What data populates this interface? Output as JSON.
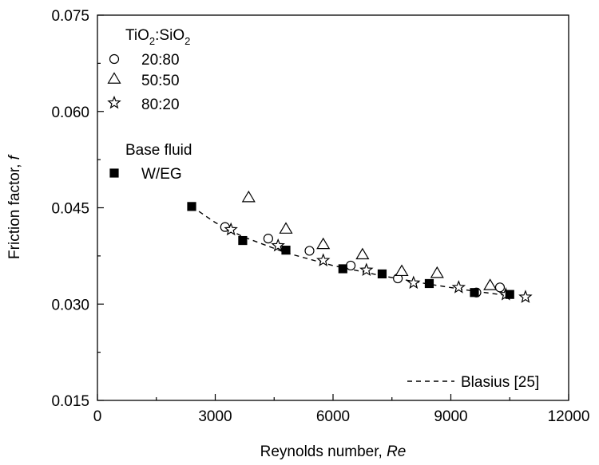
{
  "chart_data": {
    "type": "scatter",
    "title": "",
    "xlabel": "Reynolds number, ",
    "xlabel_italic": "Re",
    "ylabel": "Friction factor, ",
    "ylabel_italic": "f",
    "xlim": [
      0,
      12000
    ],
    "ylim": [
      0.015,
      0.075
    ],
    "xticks": [
      0,
      3000,
      6000,
      9000,
      12000
    ],
    "xtick_labels": [
      "0",
      "3000",
      "6000",
      "9000",
      "12000"
    ],
    "yticks": [
      0.015,
      0.03,
      0.045,
      0.06,
      0.075
    ],
    "ytick_labels": [
      "0.015",
      "0.030",
      "0.045",
      "0.060",
      "0.075"
    ],
    "grid": false,
    "legend": {
      "placement": "top-left",
      "group1_title": {
        "main": "TiO",
        "sub1": "2",
        "sep": ":SiO",
        "sub2": "2"
      },
      "group2_title": "Base fluid"
    },
    "series": [
      {
        "name": "20:80",
        "marker": "circle-open",
        "points": [
          [
            3250,
            0.042
          ],
          [
            4350,
            0.0402
          ],
          [
            5400,
            0.0383
          ],
          [
            6450,
            0.036
          ],
          [
            7650,
            0.034
          ],
          [
            9650,
            0.0318
          ],
          [
            10250,
            0.0326
          ]
        ]
      },
      {
        "name": "50:50",
        "marker": "triangle-open",
        "points": [
          [
            3850,
            0.0466
          ],
          [
            4800,
            0.0417
          ],
          [
            5750,
            0.0393
          ],
          [
            6750,
            0.0377
          ],
          [
            7750,
            0.0351
          ],
          [
            8650,
            0.0348
          ],
          [
            10000,
            0.0329
          ]
        ]
      },
      {
        "name": "80:20",
        "marker": "star-open",
        "points": [
          [
            3400,
            0.0416
          ],
          [
            4600,
            0.0391
          ],
          [
            5750,
            0.0368
          ],
          [
            6850,
            0.0353
          ],
          [
            8050,
            0.0333
          ],
          [
            9200,
            0.0326
          ],
          [
            10400,
            0.0315
          ],
          [
            10900,
            0.0311
          ]
        ]
      },
      {
        "name": "W/EG",
        "marker": "square-filled",
        "points": [
          [
            2400,
            0.0452
          ],
          [
            3700,
            0.0399
          ],
          [
            4800,
            0.0384
          ],
          [
            6250,
            0.0355
          ],
          [
            7250,
            0.0347
          ],
          [
            8450,
            0.0332
          ],
          [
            9600,
            0.0318
          ],
          [
            10500,
            0.0315
          ]
        ]
      }
    ],
    "reference_line": {
      "name": "Blasius [25]",
      "style": "dashed",
      "points": [
        [
          2400,
          0.0452
        ],
        [
          3000,
          0.0427
        ],
        [
          3700,
          0.0405
        ],
        [
          4800,
          0.038
        ],
        [
          6000,
          0.036
        ],
        [
          7250,
          0.0344
        ],
        [
          8450,
          0.0331
        ],
        [
          9600,
          0.032
        ],
        [
          10500,
          0.0313
        ]
      ]
    }
  }
}
